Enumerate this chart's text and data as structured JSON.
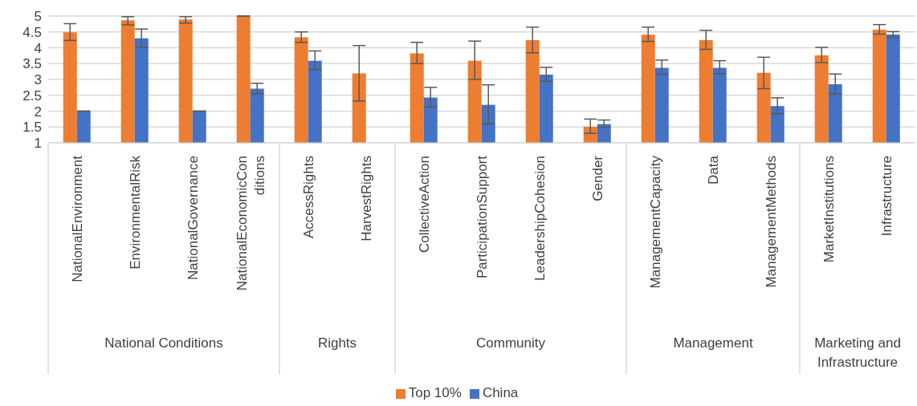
{
  "chart_data": {
    "type": "bar",
    "categories": [
      "NationalEnvironment",
      "EnvironmentalRisk",
      "NationalGovernance",
      "NationalEconomicConditions",
      "AccessRights",
      "HarvestRights",
      "CollectiveAction",
      "ParticipationSupport",
      "LeadershipCohesion",
      "Gender",
      "ManagementCapacity",
      "Data",
      "ManagementMethods",
      "MarketInstitutions",
      "Infrastructure"
    ],
    "series": [
      {
        "name": "Top 10%",
        "color": "#ed7d31",
        "values": [
          4.49,
          4.87,
          4.89,
          5.0,
          4.33,
          3.19,
          3.82,
          3.59,
          4.24,
          1.51,
          4.41,
          4.24,
          3.21,
          3.76,
          4.57
        ],
        "errors": [
          [
            4.23,
            4.76
          ],
          [
            4.72,
            4.98
          ],
          [
            4.78,
            4.98
          ],
          null,
          [
            4.17,
            4.5
          ],
          [
            2.32,
            4.07
          ],
          [
            3.5,
            4.17
          ],
          [
            3.0,
            4.21
          ],
          [
            3.84,
            4.65
          ],
          [
            1.3,
            1.75
          ],
          [
            4.2,
            4.65
          ],
          [
            3.95,
            4.55
          ],
          [
            2.71,
            3.7
          ],
          [
            3.53,
            4.01
          ],
          [
            4.43,
            4.73
          ]
        ]
      },
      {
        "name": "China",
        "color": "#4472c4",
        "values": [
          2.0,
          4.3,
          2.0,
          2.71,
          3.59,
          1.0,
          2.43,
          2.2,
          3.15,
          1.59,
          3.37,
          3.37,
          2.16,
          2.85,
          4.42
        ],
        "errors": [
          null,
          [
            4.02,
            4.59
          ],
          null,
          [
            2.55,
            2.88
          ],
          [
            3.31,
            3.9
          ],
          null,
          [
            2.13,
            2.75
          ],
          [
            1.6,
            2.83
          ],
          [
            2.94,
            3.38
          ],
          [
            1.49,
            1.72
          ],
          [
            3.16,
            3.61
          ],
          [
            3.18,
            3.59
          ],
          [
            1.92,
            2.42
          ],
          [
            2.54,
            3.17
          ],
          [
            4.33,
            4.51
          ]
        ]
      }
    ],
    "ylim": [
      1,
      5
    ],
    "yticks": [
      1,
      1.5,
      2,
      2.5,
      3,
      3.5,
      4,
      4.5,
      5
    ],
    "grid": "y",
    "legend": "bottom",
    "annotations": [
      "National Conditions",
      "Rights",
      "Community",
      "Management",
      "Marketing and Infrastructure"
    ]
  }
}
